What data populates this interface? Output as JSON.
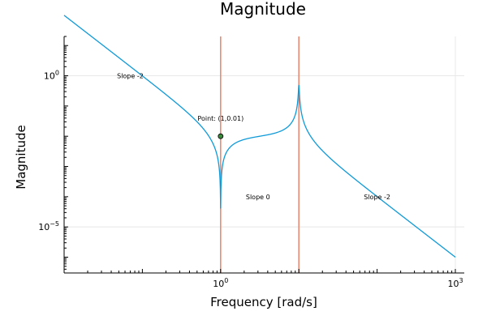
{
  "chart_data": {
    "type": "line",
    "title": "Magnitude",
    "xlabel": "Frequency [rad/s]",
    "ylabel": "Magnitude",
    "xscale": "log",
    "yscale": "log",
    "xlim": [
      0.01,
      1300
    ],
    "ylim": [
      3e-07,
      20
    ],
    "grid": true,
    "legend": "none",
    "x_ticks": [
      {
        "value": 1,
        "base": "10",
        "exp": "0"
      },
      {
        "value": 1000,
        "base": "10",
        "exp": "3"
      }
    ],
    "y_ticks": [
      {
        "value": 1,
        "base": "10",
        "exp": "0"
      },
      {
        "value": 1e-05,
        "base": "10",
        "exp": "−5"
      }
    ],
    "series": [
      {
        "color": "#0f9ad8",
        "zeros_wn": 1,
        "zeros_zeta": 0.002,
        "poles_wn": 10,
        "poles_zeta": 0.01,
        "x_range": [
          0.01,
          1000
        ]
      }
    ],
    "vlines": [
      {
        "x": 1,
        "color": "#ed8a74"
      },
      {
        "x": 10,
        "color": "#ed8a74"
      }
    ],
    "points": [
      {
        "x": 1,
        "y": 0.01,
        "color": "#3b8a3b",
        "label": "Point: (1,0.01)"
      }
    ],
    "annotations": [
      {
        "text": "Slope -2",
        "x": 0.07,
        "y": 1
      },
      {
        "text": "Slope 0",
        "x": 3,
        "y": 0.0001
      },
      {
        "text": "Slope -2",
        "x": 100,
        "y": 0.0001
      }
    ]
  }
}
